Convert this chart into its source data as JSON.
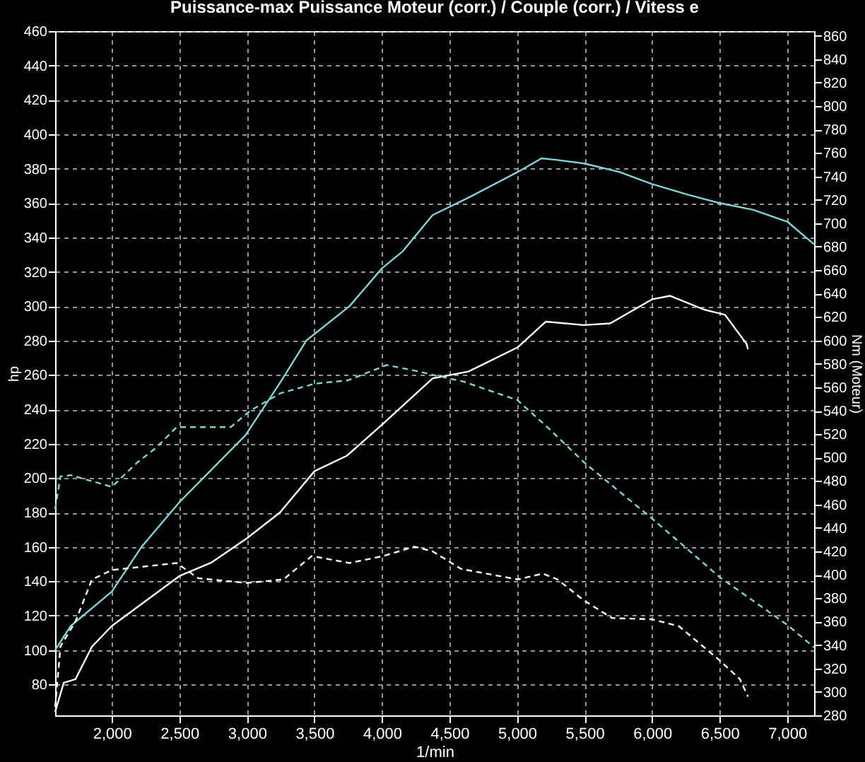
{
  "chart_data": {
    "type": "line",
    "title": "Puissance-max Puissance Moteur (corr.) / Couple (corr.) / Vitess e",
    "xlabel": "1/min",
    "ylabel": "hp",
    "y2label": "Nm (Moteur)",
    "xlim": [
      1580,
      7200
    ],
    "ylim": [
      62,
      460
    ],
    "y2lim": [
      280,
      864
    ],
    "xticks": [
      {
        "value": 2000,
        "label": "2,000"
      },
      {
        "value": 2500,
        "label": "2,500"
      },
      {
        "value": 3000,
        "label": "3,000"
      },
      {
        "value": 3500,
        "label": "3,500"
      },
      {
        "value": 4000,
        "label": "4,000"
      },
      {
        "value": 4500,
        "label": "4,500"
      },
      {
        "value": 5000,
        "label": "5,000"
      },
      {
        "value": 5500,
        "label": "5,500"
      },
      {
        "value": 6000,
        "label": "6,000"
      },
      {
        "value": 6500,
        "label": "6,500"
      },
      {
        "value": 7000,
        "label": "7,000"
      }
    ],
    "yticks": [
      80,
      100,
      120,
      140,
      160,
      180,
      200,
      220,
      240,
      260,
      280,
      300,
      320,
      340,
      360,
      380,
      400,
      420,
      440,
      460
    ],
    "y2ticks": [
      280,
      300,
      320,
      340,
      360,
      380,
      400,
      420,
      440,
      460,
      480,
      500,
      520,
      540,
      560,
      580,
      600,
      620,
      640,
      660,
      680,
      700,
      720,
      740,
      760,
      780,
      800,
      820,
      840,
      860
    ],
    "grid": true,
    "series": [
      {
        "color": "#7fd6d6",
        "line_style": "solid",
        "x": [
          1580,
          1696,
          2000,
          2220,
          2500,
          2990,
          3250,
          3440,
          3760,
          4000,
          4155,
          4375,
          4638,
          5004,
          5182,
          5300,
          5496,
          5760,
          6000,
          6260,
          6500,
          6750,
          7004,
          7200
        ],
        "values": [
          100,
          114,
          134,
          160,
          186,
          225,
          256,
          280,
          300,
          322,
          332,
          353,
          363,
          378,
          386,
          385,
          383,
          378,
          371,
          365,
          360,
          356,
          349,
          336
        ]
      },
      {
        "color": "#ffffff",
        "line_style": "solid",
        "x": [
          1580,
          1644,
          1730,
          1853,
          2000,
          2500,
          2740,
          3000,
          3245,
          3500,
          3740,
          4000,
          4375,
          4640,
          5004,
          5213,
          5496,
          5690,
          6000,
          6135,
          6385,
          6540,
          6700,
          6710
        ],
        "values": [
          64,
          81,
          83,
          102,
          114,
          143,
          151,
          165,
          180,
          204,
          213,
          231,
          258,
          262,
          276,
          291,
          289,
          290,
          304,
          306,
          298,
          295,
          278,
          275
        ]
      },
      {
        "color": "#7fd6d6",
        "line_style": "dashed",
        "axis": "y2",
        "x": [
          1580,
          1620,
          1696,
          2000,
          2190,
          2324,
          2480,
          2880,
          3025,
          3250,
          3500,
          3750,
          4035,
          4250,
          4400,
          4600,
          5004,
          5234,
          5496,
          6000,
          6500,
          7004,
          7200
        ],
        "values": [
          456,
          484,
          485,
          475,
          496,
          508,
          526,
          526,
          540,
          555,
          563,
          566,
          579,
          574,
          570,
          565,
          549,
          525,
          496,
          448,
          398,
          357,
          338
        ]
      },
      {
        "color": "#ffffff",
        "line_style": "dashed",
        "axis": "y2",
        "x": [
          1580,
          1620,
          1730,
          1853,
          2000,
          2480,
          2640,
          3000,
          3270,
          3480,
          3760,
          4010,
          4240,
          4375,
          4585,
          5004,
          5192,
          5300,
          5496,
          5705,
          6000,
          6200,
          6500,
          6650,
          6710
        ],
        "values": [
          287,
          339,
          360,
          396,
          404,
          410,
          397,
          393,
          396,
          416,
          410,
          416,
          424,
          420,
          405,
          396,
          401,
          396,
          378,
          363,
          362,
          356,
          327,
          311,
          296
        ]
      }
    ]
  }
}
